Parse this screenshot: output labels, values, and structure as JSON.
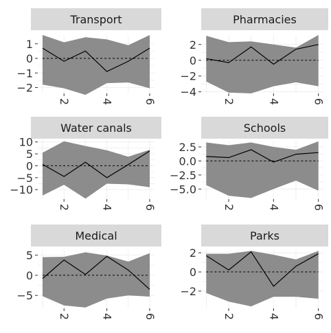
{
  "chart_data": [
    {
      "type": "line",
      "title": "Transport",
      "x": [
        1,
        2,
        3,
        4,
        5,
        6
      ],
      "ylim": [
        -2.4,
        1.6
      ],
      "yticks": [
        1,
        0,
        -1,
        -2
      ],
      "ytick_labels": [
        "1",
        "0",
        "−1",
        "−2"
      ],
      "xticks": [
        2,
        4,
        6
      ],
      "xtick_labels": [
        "2",
        "4",
        "6"
      ],
      "series": [
        {
          "role": "estimate",
          "values": [
            0.7,
            -0.2,
            0.5,
            -0.9,
            -0.2,
            0.7
          ]
        },
        {
          "role": "upper",
          "values": [
            1.6,
            1.1,
            1.45,
            1.3,
            0.9,
            1.6
          ]
        },
        {
          "role": "lower",
          "values": [
            -1.8,
            -2.05,
            -2.5,
            -1.7,
            -1.65,
            -2.05
          ]
        },
        {
          "role": "reference",
          "values": [
            0,
            0,
            0,
            0,
            0,
            0
          ]
        }
      ]
    },
    {
      "type": "line",
      "title": "Pharmacies",
      "x": [
        1,
        2,
        3,
        4,
        5,
        6
      ],
      "ylim": [
        -4.2,
        3.2
      ],
      "yticks": [
        2,
        0,
        -2,
        -4
      ],
      "ytick_labels": [
        "2",
        "0",
        "−2",
        "−4"
      ],
      "xticks": [
        2,
        4,
        6
      ],
      "xtick_labels": [
        "2",
        "4",
        "6"
      ],
      "series": [
        {
          "role": "estimate",
          "values": [
            0.2,
            -0.3,
            1.7,
            -0.5,
            1.4,
            2.0
          ]
        },
        {
          "role": "upper",
          "values": [
            3.1,
            2.3,
            2.4,
            2.0,
            1.6,
            3.2
          ]
        },
        {
          "role": "lower",
          "values": [
            -2.7,
            -4.1,
            -4.2,
            -3.3,
            -2.8,
            -3.3
          ]
        },
        {
          "role": "reference",
          "values": [
            0,
            0,
            0,
            0,
            0,
            0
          ]
        }
      ]
    },
    {
      "type": "line",
      "title": "Water canals",
      "x": [
        1,
        2,
        3,
        4,
        5,
        6
      ],
      "ylim": [
        -14,
        10.5
      ],
      "yticks": [
        10,
        5,
        0,
        -5,
        -10
      ],
      "ytick_labels": [
        "10",
        "5",
        "0",
        "−5",
        "−10"
      ],
      "xticks": [
        2,
        4,
        6
      ],
      "xtick_labels": [
        "2",
        "4",
        "6"
      ],
      "series": [
        {
          "role": "estimate",
          "values": [
            0.6,
            -4.5,
            1.5,
            -5.0,
            0.5,
            6.2
          ]
        },
        {
          "role": "upper",
          "values": [
            5.5,
            10.3,
            8.3,
            6.5,
            3.8,
            6.7
          ]
        },
        {
          "role": "lower",
          "values": [
            -12.5,
            -8.0,
            -13.8,
            -7.5,
            -7.8,
            -9.0
          ]
        },
        {
          "role": "reference",
          "values": [
            0,
            0,
            0,
            0,
            0,
            0
          ]
        }
      ]
    },
    {
      "type": "line",
      "title": "Schools",
      "x": [
        1,
        2,
        3,
        4,
        5,
        6
      ],
      "ylim": [
        -6.8,
        3.6
      ],
      "yticks": [
        2.5,
        0.0,
        -2.5,
        -5.0
      ],
      "ytick_labels": [
        "2.5",
        "0.0",
        "−2.5",
        "−5.0"
      ],
      "xticks": [
        2,
        4,
        6
      ],
      "xtick_labels": [
        "2",
        "4",
        "6"
      ],
      "series": [
        {
          "role": "estimate",
          "values": [
            0.8,
            0.6,
            2.0,
            -0.2,
            1.2,
            1.5
          ]
        },
        {
          "role": "upper",
          "values": [
            3.3,
            2.8,
            3.3,
            2.5,
            2.0,
            3.5
          ]
        },
        {
          "role": "lower",
          "values": [
            -4.3,
            -6.2,
            -6.6,
            -5.0,
            -3.5,
            -5.3
          ]
        },
        {
          "role": "reference",
          "values": [
            0,
            0,
            0,
            0,
            0,
            0
          ]
        }
      ]
    },
    {
      "type": "line",
      "title": "Medical",
      "x": [
        1,
        2,
        3,
        4,
        5,
        6
      ],
      "ylim": [
        -8.2,
        6.3
      ],
      "yticks": [
        5,
        0,
        -5
      ],
      "ytick_labels": [
        "5",
        "0",
        "−5"
      ],
      "xticks": [
        2,
        4,
        6
      ],
      "xtick_labels": [
        "2",
        "4",
        "6"
      ],
      "series": [
        {
          "role": "estimate",
          "values": [
            -0.8,
            3.8,
            0.2,
            4.7,
            1.3,
            -3.5
          ]
        },
        {
          "role": "upper",
          "values": [
            4.5,
            4.6,
            5.7,
            4.9,
            3.4,
            5.5
          ]
        },
        {
          "role": "lower",
          "values": [
            -5.2,
            -7.5,
            -8.0,
            -5.8,
            -5.0,
            -5.3
          ]
        },
        {
          "role": "reference",
          "values": [
            0,
            0,
            0,
            0,
            0,
            0
          ]
        }
      ]
    },
    {
      "type": "line",
      "title": "Parks",
      "x": [
        1,
        2,
        3,
        4,
        5,
        6
      ],
      "ylim": [
        -3.8,
        2.3
      ],
      "yticks": [
        2,
        0,
        -2
      ],
      "ytick_labels": [
        "2",
        "0",
        "−2"
      ],
      "xticks": [
        2,
        4,
        6
      ],
      "xtick_labels": [
        "2",
        "4",
        "6"
      ],
      "series": [
        {
          "role": "estimate",
          "values": [
            1.7,
            0.2,
            2.1,
            -1.5,
            0.6,
            1.9
          ]
        },
        {
          "role": "upper",
          "values": [
            1.9,
            1.9,
            2.2,
            1.8,
            1.3,
            2.2
          ]
        },
        {
          "role": "lower",
          "values": [
            -2.2,
            -3.1,
            -3.6,
            -2.6,
            -2.6,
            -2.8
          ]
        },
        {
          "role": "reference",
          "values": [
            0,
            0,
            0,
            0,
            0,
            0
          ]
        }
      ]
    }
  ],
  "style": {
    "ribbon_color": "#8c8c8c",
    "line_color": "#000000",
    "strip_color": "#d9d9d9",
    "grid_color": "#ebebeb",
    "text_color": "#1a1a1a",
    "tick_color": "#333333",
    "grid": true,
    "xtick_rotation": "vertical"
  }
}
